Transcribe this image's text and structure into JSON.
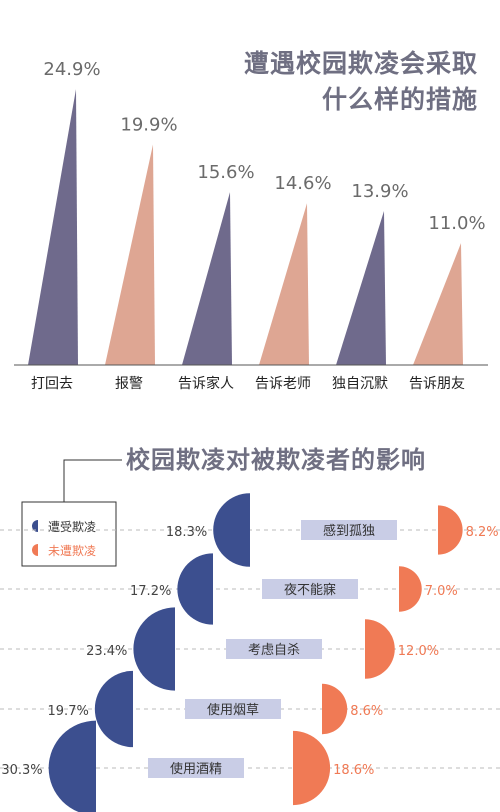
{
  "chart_data": [
    {
      "type": "bar",
      "title": "遭遇校园欺凌会采取什么样的措施",
      "title_lines": [
        "遭遇校园欺凌会采取",
        "什么样的措施"
      ],
      "categories": [
        "打回去",
        "报警",
        "告诉家人",
        "告诉老师",
        "独自沉默",
        "告诉朋友"
      ],
      "values": [
        24.9,
        19.9,
        15.6,
        14.6,
        13.9,
        11.0
      ],
      "value_labels": [
        "24.9%",
        "19.9%",
        "15.6%",
        "14.6%",
        "13.9%",
        "11.0%"
      ],
      "ylim": [
        0,
        25
      ],
      "grid": false,
      "colors": [
        "#6f6a8c",
        "#dea693",
        "#6f6a8c",
        "#dea693",
        "#6f6a8c",
        "#dea693"
      ]
    },
    {
      "type": "bar",
      "title": "校园欺凌对被欺凌者的影响",
      "legend_position": "left",
      "categories": [
        "感到孤独",
        "夜不能寐",
        "考虑自杀",
        "使用烟草",
        "使用酒精"
      ],
      "series": [
        {
          "name": "遭受欺凌",
          "values": [
            18.3,
            17.2,
            23.4,
            19.7,
            30.3
          ],
          "labels": [
            "18.3%",
            "17.2%",
            "23.4%",
            "19.7%",
            "30.3%"
          ],
          "color": "#3c4f8f"
        },
        {
          "name": "未遭欺凌",
          "values": [
            8.2,
            7.0,
            12.0,
            8.6,
            18.6
          ],
          "labels": [
            "8.2%",
            "7.0%",
            "12.0%",
            "8.6%",
            "18.6%"
          ],
          "color": "#f07a55"
        }
      ],
      "category_label_bg": "#c9cde6"
    }
  ]
}
